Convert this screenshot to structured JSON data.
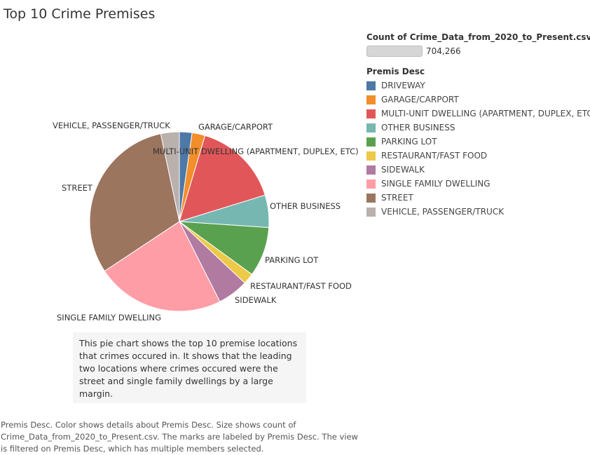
{
  "chart_data": {
    "type": "pie",
    "title": "Top 10 Crime Premises",
    "categories": [
      "DRIVEWAY",
      "GARAGE/CARPORT",
      "MULTI-UNIT DWELLING (APARTMENT, DUPLEX, ETC)",
      "OTHER BUSINESS",
      "PARKING LOT",
      "RESTAURANT/FAST FOOD",
      "SIDEWALK",
      "SINGLE FAMILY DWELLING",
      "STREET",
      "VEHICLE, PASSENGER/TRUCK"
    ],
    "values": [
      16000,
      16500,
      110000,
      41000,
      63000,
      14000,
      39000,
      163000,
      218000,
      23500
    ],
    "colors": [
      "#4e79a7",
      "#f28e2b",
      "#e15759",
      "#76b7b2",
      "#59a14f",
      "#edc948",
      "#b07aa1",
      "#ff9da7",
      "#9c755f",
      "#bab0ac"
    ],
    "size_legend": {
      "title": "Count of Crime_Data_from_2020_to_Present.csv",
      "value": "704,266"
    },
    "color_legend_title": "Premis Desc",
    "legend_placement": "right"
  },
  "annotation": "This pie chart shows the top 10 premise locations that crimes occured in. It shows that the leading two locations where crimes occured were the street and single family dwellings by a large margin.",
  "caption": "Premis Desc.  Color shows details about Premis Desc.  Size shows count of Crime_Data_from_2020_to_Present.csv.  The marks are labeled by Premis Desc. The view is filtered on Premis Desc, which has multiple members selected."
}
